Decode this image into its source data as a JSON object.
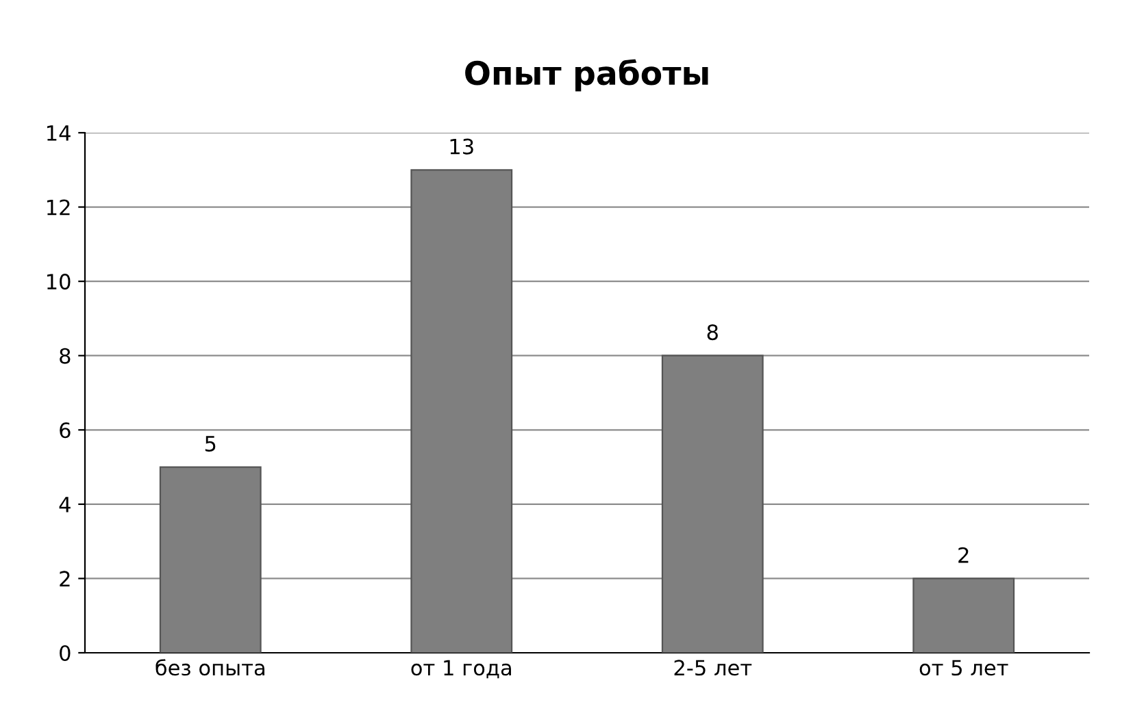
{
  "chart_data": {
    "type": "bar",
    "title": "Опыт работы",
    "categories": [
      "без опыта",
      "от 1 года",
      "2-5 лет",
      "от 5 лет"
    ],
    "values": [
      5,
      13,
      8,
      2
    ],
    "color": "#7f7f7f",
    "ylim": [
      0,
      14
    ],
    "yticks": [
      0,
      2,
      4,
      6,
      8,
      10,
      12,
      14
    ],
    "grid": "y",
    "data_labels": true
  }
}
